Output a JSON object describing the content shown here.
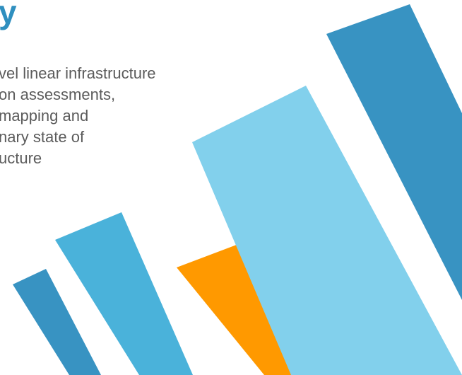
{
  "heading": {
    "visible_fragment": "y"
  },
  "body": {
    "lines": [
      "vel linear infrastructure",
      "on assessments,",
      "mapping and",
      "nary state of",
      "ucture"
    ]
  },
  "graphic": {
    "shapes": [
      "tilted-bar",
      "tilted-bar",
      "tilted-bar",
      "tilted-bar",
      "tilted-bar"
    ],
    "colors": {
      "dark_blue": "#3893c2",
      "mid_blue": "#4ab2da",
      "light_blue": "#82d0ec",
      "orange": "#ff9900"
    }
  }
}
